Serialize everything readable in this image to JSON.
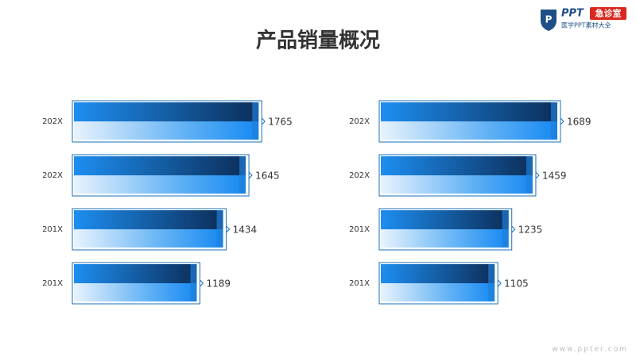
{
  "title": "产品销量概况",
  "logo": {
    "brand": "PPT",
    "badge": "急诊室",
    "tagline": "医学PPT素材大全"
  },
  "footer": "www.ppter.com",
  "chart_data": [
    {
      "type": "bar",
      "orientation": "horizontal",
      "categories": [
        "202X",
        "202X",
        "201X",
        "201X"
      ],
      "values": [
        1765,
        1645,
        1434,
        1189
      ]
    },
    {
      "type": "bar",
      "orientation": "horizontal",
      "categories": [
        "202X",
        "202X",
        "201X",
        "201X"
      ],
      "values": [
        1689,
        1459,
        1235,
        1105
      ]
    }
  ]
}
